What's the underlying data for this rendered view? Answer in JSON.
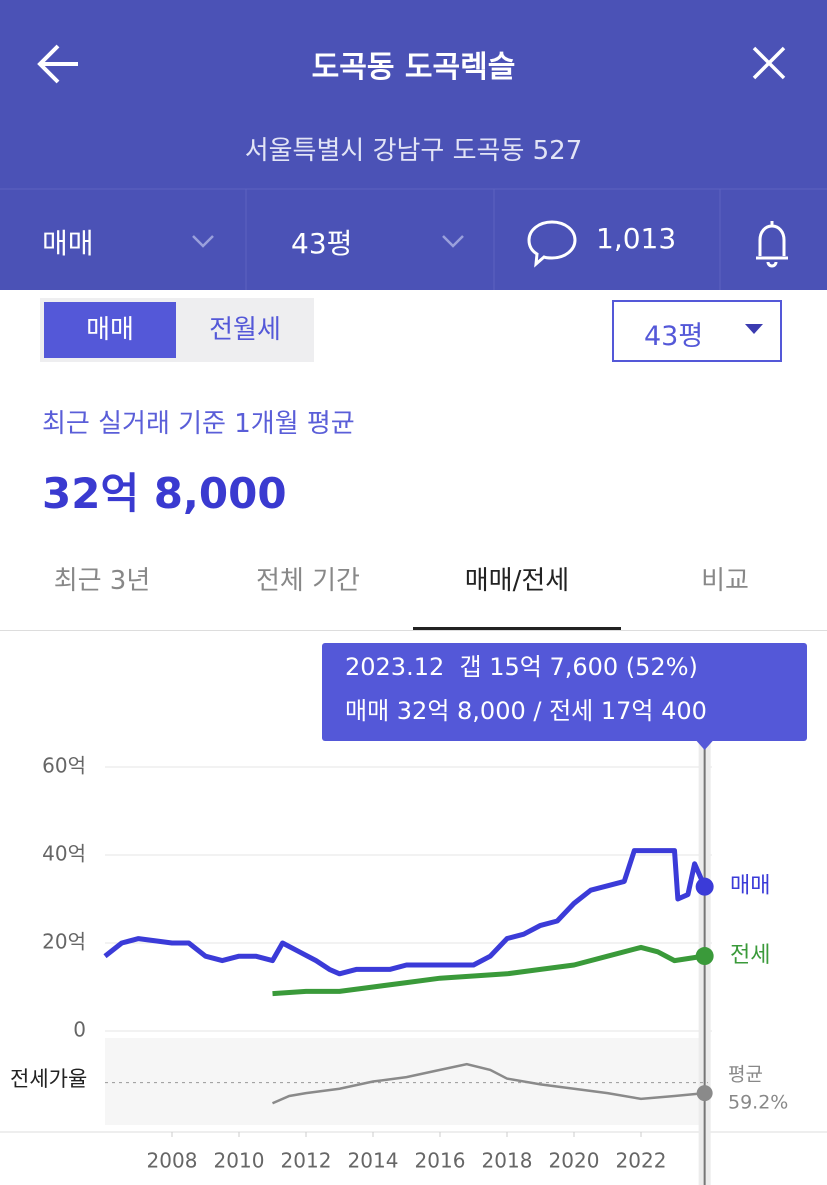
{
  "header": {
    "title": "도곡동 도곡렉슬",
    "address": "서울특별시 강남구 도곡동 527"
  },
  "toolbar": {
    "deal_type": "매매",
    "size": "43평",
    "comments": "1,013"
  },
  "toggle": [
    "매매",
    "전월세"
  ],
  "size_select": "43평",
  "summary": {
    "label": "최근 실거래 기준 1개월 평균",
    "price": "32억 8,000"
  },
  "tabs": [
    "최근 3년",
    "전체 기간",
    "매매/전세",
    "비교"
  ],
  "tooltip": {
    "line1": "2023.12  갭 15억 7,600 (52%)",
    "line2": "매매 32억 8,000 / 전세 17억 400"
  },
  "chart_data": {
    "type": "line",
    "xlim": [
      2006,
      2024
    ],
    "xticks": [
      2008,
      2010,
      2012,
      2014,
      2016,
      2018,
      2020,
      2022
    ],
    "ylim": [
      0,
      60
    ],
    "yticks": [
      0,
      {
        "value": 20,
        "label": "20억"
      },
      {
        "value": 40,
        "label": "40억"
      },
      {
        "value": 60,
        "label": "60억"
      }
    ],
    "grid": true,
    "series": [
      {
        "name": "매매",
        "color": "#3b3bd8",
        "x": [
          2006,
          2006.5,
          2007,
          2008,
          2008.5,
          2009,
          2009.5,
          2010,
          2010.5,
          2011,
          2011.3,
          2011.8,
          2012.3,
          2012.7,
          2013,
          2013.5,
          2014,
          2014.5,
          2015,
          2015.5,
          2016,
          2016.5,
          2017,
          2017.5,
          2018,
          2018.5,
          2019,
          2019.5,
          2020,
          2020.5,
          2021,
          2021.5,
          2021.8,
          2022.5,
          2023,
          2023.1,
          2023.4,
          2023.6,
          2023.9
        ],
        "values": [
          17,
          20,
          21,
          20,
          20,
          17,
          16,
          17,
          17,
          16,
          20,
          18,
          16,
          14,
          13,
          14,
          14,
          14,
          15,
          15,
          15,
          15,
          15,
          17,
          21,
          22,
          24,
          25,
          29,
          32,
          33,
          34,
          41,
          41,
          41,
          30,
          31,
          38,
          32.8
        ]
      },
      {
        "name": "전세",
        "color": "#3a9a3a",
        "x": [
          2011,
          2012,
          2013,
          2014,
          2015,
          2016,
          2017,
          2018,
          2019,
          2020,
          2021,
          2022,
          2022.5,
          2023,
          2023.9
        ],
        "values": [
          8.5,
          9,
          9,
          10,
          11,
          12,
          12.5,
          13,
          14,
          15,
          17,
          19,
          18,
          16,
          17.04
        ]
      }
    ],
    "ratio": {
      "name": "전세가율",
      "color": "#8a8a8a",
      "ylim": [
        30,
        90
      ],
      "x": [
        2011,
        2011.5,
        2012,
        2013,
        2014,
        2015,
        2016,
        2016.8,
        2017.5,
        2018,
        2019,
        2020,
        2021,
        2022,
        2023,
        2023.9
      ],
      "values": [
        45,
        50,
        52,
        55,
        60,
        63,
        68,
        72,
        68,
        62,
        58,
        55,
        52,
        48,
        50,
        52
      ],
      "average": {
        "label": "평균",
        "value": 59.2,
        "value_label": "59.2%"
      }
    }
  }
}
